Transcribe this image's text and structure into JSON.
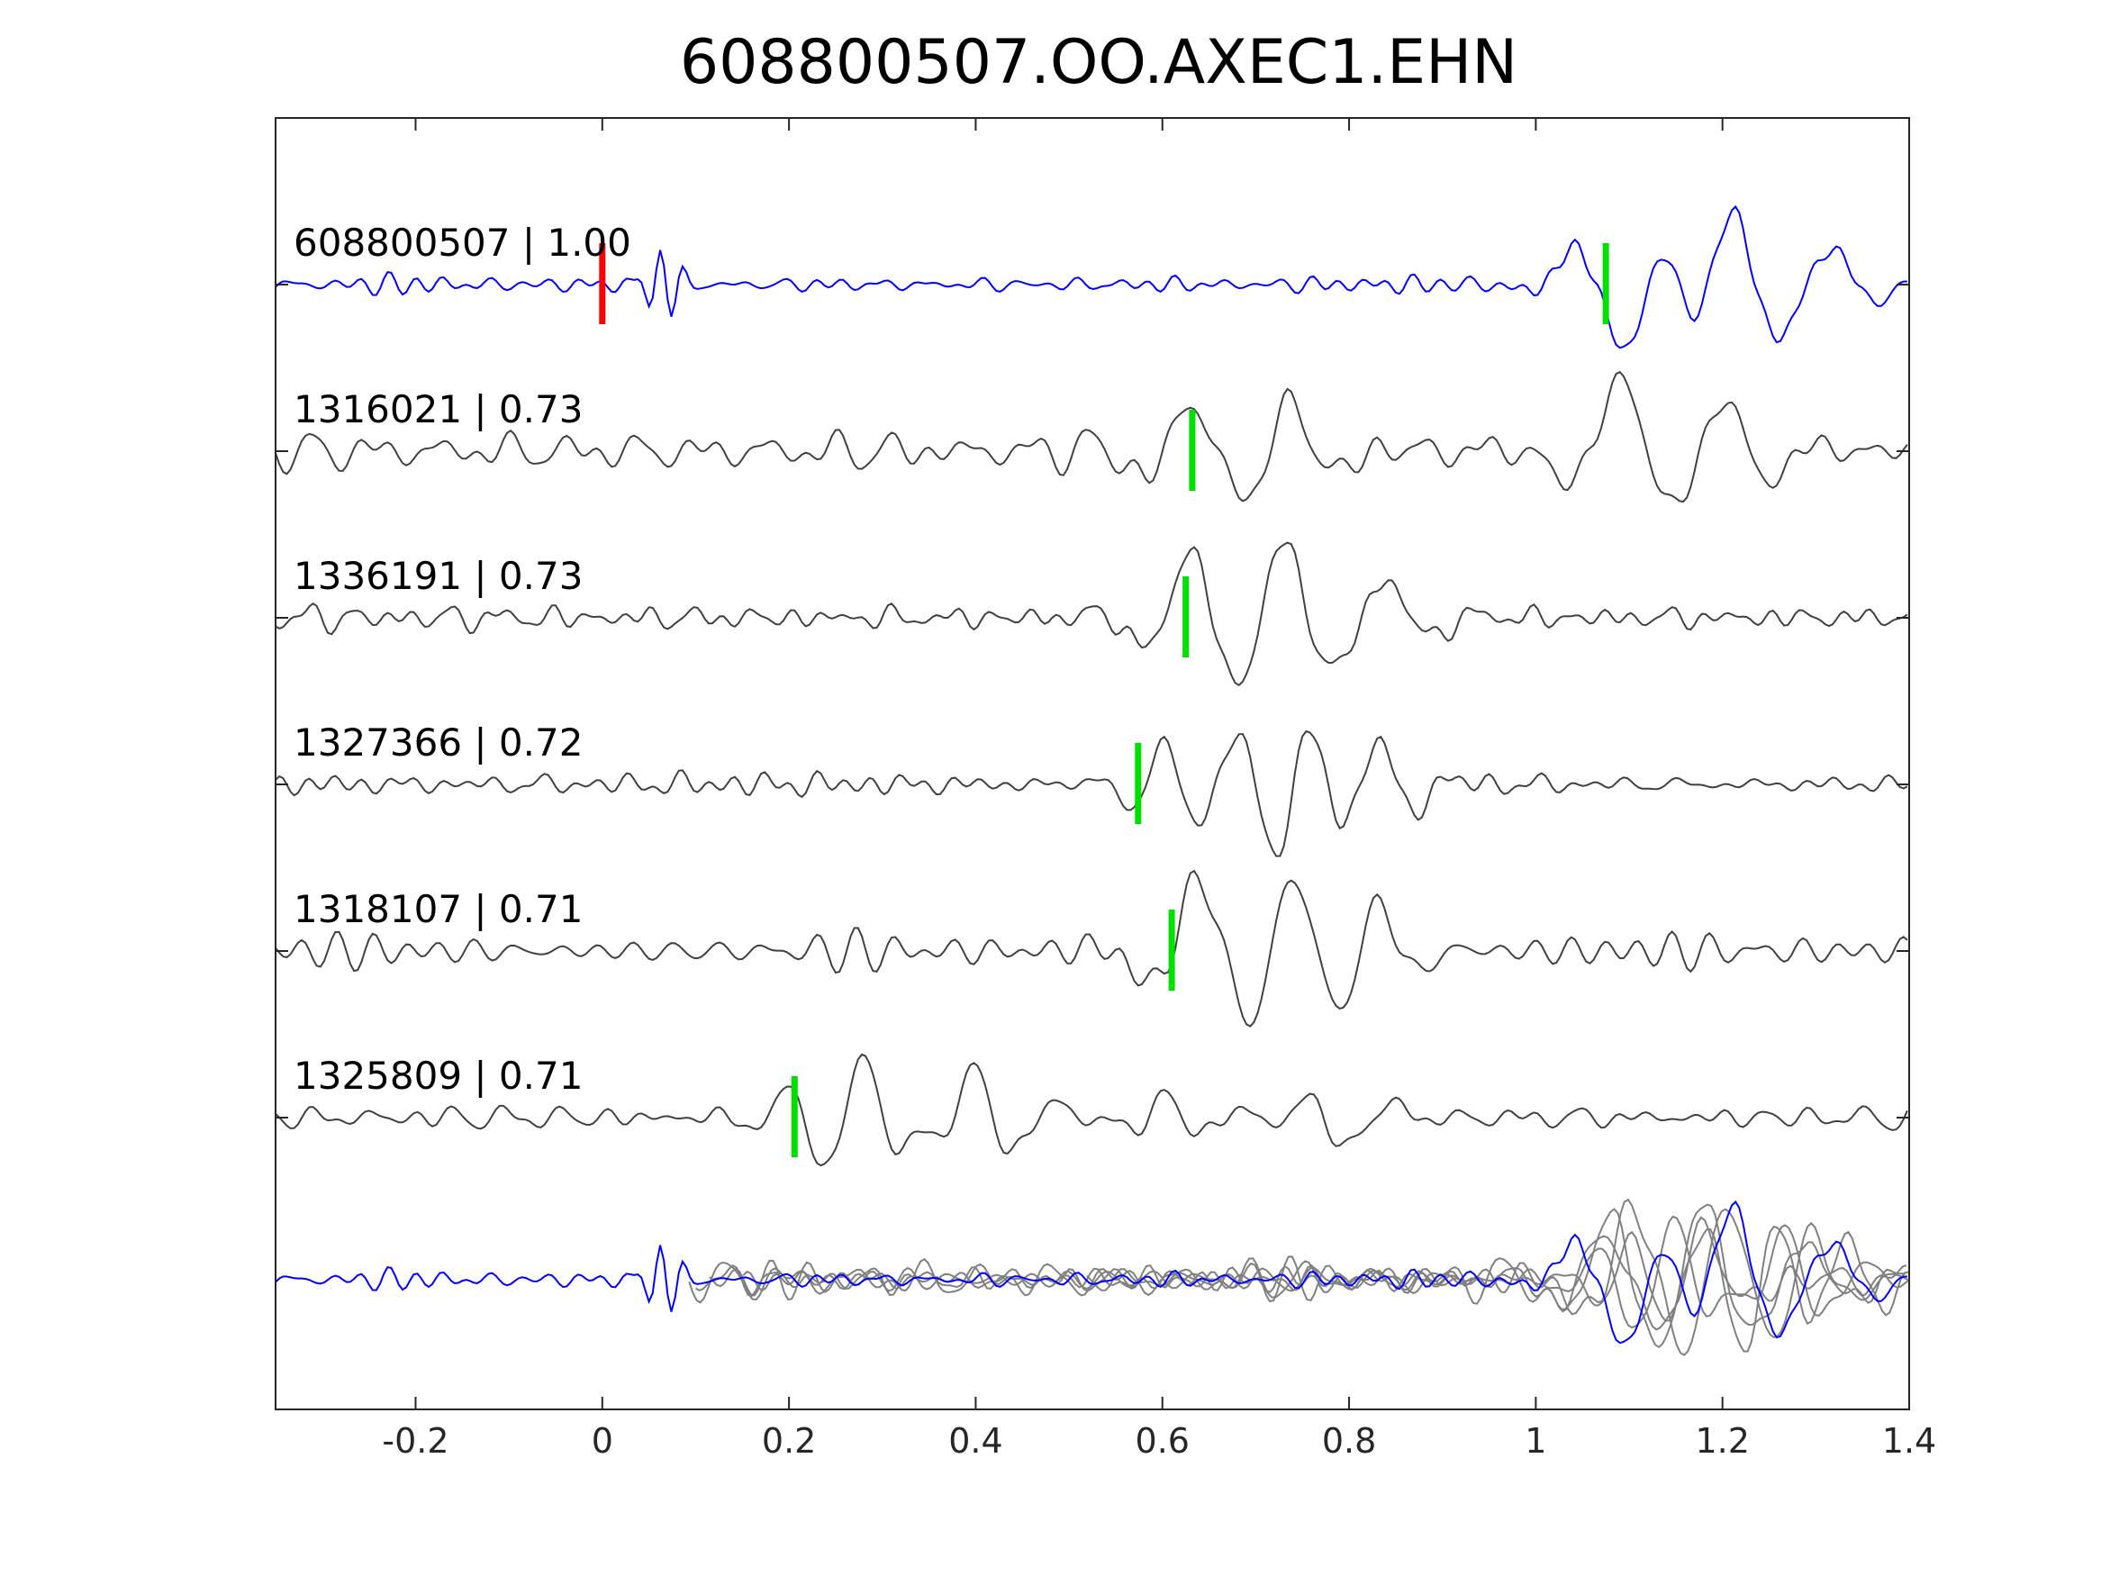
{
  "figure": {
    "title": "608800507.OO.AXEC1.EHN"
  },
  "chart_data": {
    "type": "line",
    "title": "608800507.OO.AXEC1.EHN",
    "xlabel": "",
    "ylabel": "",
    "xlim": [
      -0.35,
      1.4
    ],
    "xticks": [
      -0.2,
      0,
      0.2,
      0.4,
      0.6,
      0.8,
      1,
      1.2,
      1.4
    ],
    "xtick_labels": [
      "-0.2",
      "0",
      "0.2",
      "0.4",
      "0.6",
      "0.8",
      "1",
      "1.2",
      "1.4"
    ],
    "grid": false,
    "colors": {
      "template": "#0000ff",
      "neighbor": "#404040",
      "overlay": "#808080",
      "origin_pick": "#ff0000",
      "arrival_pick": "#00e000"
    },
    "traces": [
      {
        "label": "608800507 | 1.00",
        "id": "608800507",
        "cc": 1.0,
        "color": "#0000ff",
        "origin_pick": 0.0,
        "arrival_pick": 1.075,
        "wavelets": [
          {
            "t": 0.063,
            "a": 0.9,
            "f": 40,
            "w": 0.015
          },
          {
            "t": 1.095,
            "a": -1.6,
            "f": 8.5,
            "w": 0.05
          },
          {
            "t": 1.21,
            "a": 1.9,
            "f": 10,
            "w": 0.045
          },
          {
            "t": 1.32,
            "a": 0.8,
            "f": 10,
            "w": 0.04
          }
        ],
        "noise": 0.22,
        "seed": 3
      },
      {
        "label": "1316021 | 0.73",
        "id": "1316021",
        "cc": 0.73,
        "color": "#404040",
        "arrival_pick": 0.632,
        "wavelets": [
          {
            "t": 0.63,
            "a": 1.1,
            "f": 9,
            "w": 0.05
          },
          {
            "t": 0.74,
            "a": 0.9,
            "f": 9,
            "w": 0.05
          },
          {
            "t": 1.09,
            "a": 1.5,
            "f": 7.5,
            "w": 0.05
          },
          {
            "t": 1.2,
            "a": 1.2,
            "f": 9,
            "w": 0.05
          }
        ],
        "noise": 0.55,
        "seed": 11
      },
      {
        "label": "1336191 | 0.73",
        "id": "1336191",
        "cc": 0.73,
        "color": "#404040",
        "arrival_pick": 0.625,
        "wavelets": [
          {
            "t": 0.63,
            "a": 1.4,
            "f": 9,
            "w": 0.045
          },
          {
            "t": 0.73,
            "a": 1.6,
            "f": 9,
            "w": 0.05
          },
          {
            "t": 0.84,
            "a": 0.7,
            "f": 9,
            "w": 0.05
          }
        ],
        "noise": 0.38,
        "seed": 23
      },
      {
        "label": "1327366 | 0.72",
        "id": "1327366",
        "cc": 0.72,
        "color": "#404040",
        "arrival_pick": 0.574,
        "wavelets": [
          {
            "t": 0.6,
            "a": 1.0,
            "f": 13,
            "w": 0.04
          },
          {
            "t": 0.72,
            "a": -1.7,
            "f": 12,
            "w": 0.045
          },
          {
            "t": 0.83,
            "a": 1.1,
            "f": 12,
            "w": 0.04
          }
        ],
        "noise": 0.38,
        "seed": 37
      },
      {
        "label": "1318107 | 0.71",
        "id": "1318107",
        "cc": 0.71,
        "color": "#404040",
        "arrival_pick": 0.61,
        "wavelets": [
          {
            "t": 0.64,
            "a": 1.5,
            "f": 8,
            "w": 0.05
          },
          {
            "t": 0.74,
            "a": 1.6,
            "f": 9,
            "w": 0.05
          },
          {
            "t": 0.83,
            "a": 1.0,
            "f": 10,
            "w": 0.04
          }
        ],
        "noise": 0.45,
        "seed": 51
      },
      {
        "label": "1325809 | 0.71",
        "id": "1325809",
        "cc": 0.71,
        "color": "#404040",
        "arrival_pick": 0.206,
        "wavelets": [
          {
            "t": 0.28,
            "a": 1.6,
            "f": 12,
            "w": 0.06
          },
          {
            "t": 0.4,
            "a": 1.4,
            "f": 12,
            "w": 0.05
          },
          {
            "t": 0.6,
            "a": 0.5,
            "f": 12,
            "w": 0.05
          },
          {
            "t": 0.8,
            "a": -0.7,
            "f": 10,
            "w": 0.04
          }
        ],
        "noise": 0.33,
        "seed": 67
      }
    ],
    "overlay": {
      "description_omitted": true
    }
  }
}
